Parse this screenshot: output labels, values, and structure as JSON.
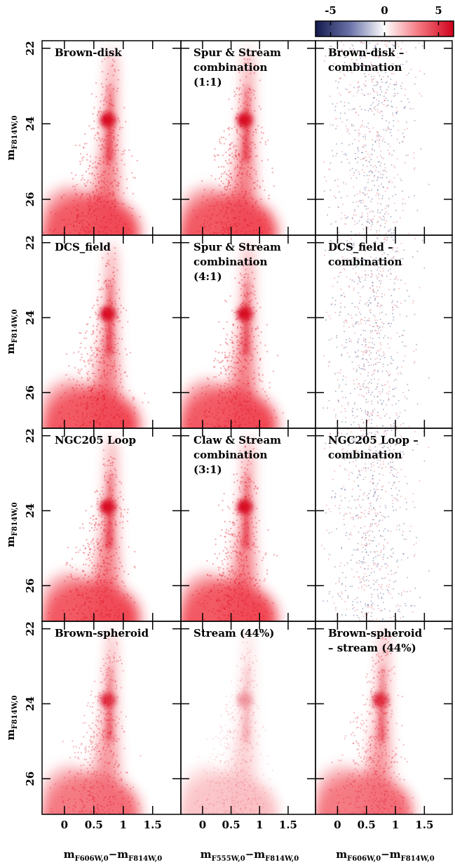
{
  "colorbar": {
    "xlim": [
      -6.4,
      6.4
    ],
    "xticks": [
      -5,
      0,
      5
    ]
  },
  "chart_data": [
    {
      "type": "hess",
      "title": [
        "Brown-disk"
      ],
      "xlim": [
        -0.38,
        1.98
      ],
      "ylim": [
        26.95,
        21.8
      ],
      "xticks": [
        0,
        0.5,
        1,
        1.5
      ],
      "yticks": [
        22,
        24,
        26
      ],
      "ylabel": {
        "text": "m",
        "sub": "F814W,0"
      }
    },
    {
      "type": "hess",
      "title": [
        "Spur & Stream",
        "combination",
        "(1:1)"
      ],
      "xlim": [
        -0.38,
        1.98
      ],
      "ylim": [
        26.95,
        21.8
      ],
      "xticks": [
        0,
        0.5,
        1,
        1.5
      ],
      "yticks": [
        22,
        24,
        26
      ]
    },
    {
      "type": "hess",
      "title": [
        "Brown-disk –",
        "combination"
      ],
      "xlim": [
        -0.38,
        1.98
      ],
      "ylim": [
        26.95,
        21.8
      ],
      "xticks": [
        0,
        0.5,
        1,
        1.5
      ],
      "yticks": [
        22,
        24,
        26
      ]
    },
    {
      "type": "hess",
      "title": [
        "DCS_field"
      ],
      "xlim": [
        -0.38,
        1.98
      ],
      "ylim": [
        26.95,
        21.8
      ],
      "xticks": [
        0,
        0.5,
        1,
        1.5
      ],
      "yticks": [
        22,
        24,
        26
      ],
      "ylabel": {
        "text": "m",
        "sub": "F814W,0"
      }
    },
    {
      "type": "hess",
      "title": [
        "Spur & Stream",
        "combination",
        "(4:1)"
      ],
      "xlim": [
        -0.38,
        1.98
      ],
      "ylim": [
        26.95,
        21.8
      ],
      "xticks": [
        0,
        0.5,
        1,
        1.5
      ],
      "yticks": [
        22,
        24,
        26
      ]
    },
    {
      "type": "hess",
      "title": [
        "DCS_field –",
        "combination"
      ],
      "xlim": [
        -0.38,
        1.98
      ],
      "ylim": [
        26.95,
        21.8
      ],
      "xticks": [
        0,
        0.5,
        1,
        1.5
      ],
      "yticks": [
        22,
        24,
        26
      ]
    },
    {
      "type": "hess",
      "title": [
        "NGC205 Loop"
      ],
      "xlim": [
        -0.38,
        1.98
      ],
      "ylim": [
        26.95,
        21.8
      ],
      "xticks": [
        0,
        0.5,
        1,
        1.5
      ],
      "yticks": [
        22,
        24,
        26
      ],
      "ylabel": {
        "text": "m",
        "sub": "F814W,0"
      }
    },
    {
      "type": "hess",
      "title": [
        "Claw & Stream",
        "combination",
        "(3:1)"
      ],
      "xlim": [
        -0.38,
        1.98
      ],
      "ylim": [
        26.95,
        21.8
      ],
      "xticks": [
        0,
        0.5,
        1,
        1.5
      ],
      "yticks": [
        22,
        24,
        26
      ]
    },
    {
      "type": "hess",
      "title": [
        "NGC205 Loop –",
        "combination"
      ],
      "xlim": [
        -0.38,
        1.98
      ],
      "ylim": [
        26.95,
        21.8
      ],
      "xticks": [
        0,
        0.5,
        1,
        1.5
      ],
      "yticks": [
        22,
        24,
        26
      ]
    },
    {
      "type": "hess",
      "title": [
        "Brown-spheroid"
      ],
      "xlim": [
        -0.38,
        1.98
      ],
      "ylim": [
        26.95,
        21.8
      ],
      "xticks": [
        0,
        0.5,
        1,
        1.5
      ],
      "yticks": [
        22,
        24,
        26
      ],
      "ylabel": {
        "text": "m",
        "sub": "F814W,0"
      },
      "xlabel": [
        {
          "text": "m",
          "sub": "F606W,0"
        },
        {
          "text": "−m",
          "sub": "F814W,0"
        }
      ]
    },
    {
      "type": "hess",
      "title": [
        "Stream (44%)"
      ],
      "xlim": [
        -0.38,
        1.98
      ],
      "ylim": [
        26.95,
        21.8
      ],
      "xticks": [
        0,
        0.5,
        1,
        1.5
      ],
      "yticks": [
        22,
        24,
        26
      ],
      "xlabel": [
        {
          "text": "m",
          "sub": "F555W,0"
        },
        {
          "text": "−m",
          "sub": "F814W,0"
        }
      ]
    },
    {
      "type": "hess",
      "title": [
        "Brown-spheroid",
        "– stream (44%)"
      ],
      "xlim": [
        -0.38,
        1.98
      ],
      "ylim": [
        26.95,
        21.8
      ],
      "xticks": [
        0,
        0.5,
        1,
        1.5
      ],
      "yticks": [
        22,
        24,
        26
      ],
      "xlabel": [
        {
          "text": "m",
          "sub": "F606W,0"
        },
        {
          "text": "−m",
          "sub": "F814W,0"
        }
      ]
    }
  ]
}
